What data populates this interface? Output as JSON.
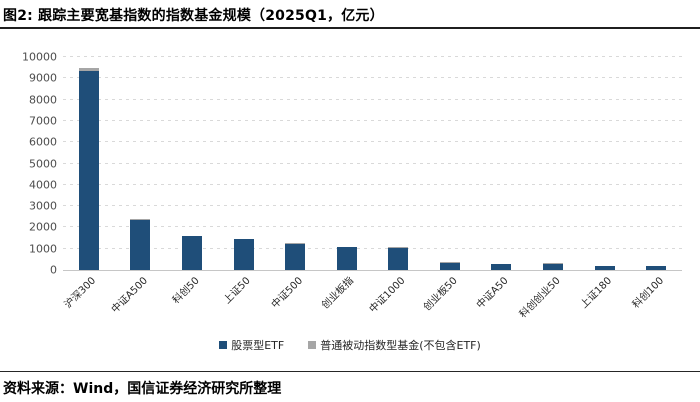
{
  "title": "图2: 跟踪主要宽基指数的指数基金规模（2025Q1，亿元）",
  "source": "资料来源：Wind，国信证券经济研究所整理",
  "colors": {
    "etf_bar": "#1F4E79",
    "non_etf_bar": "#A6A6A6",
    "gridline": "#D9D9D9",
    "axis_line": "#C6C6C6",
    "tick_text": "#4D4D4D",
    "rule_line": "#1F1F1F"
  },
  "chart_data": {
    "type": "bar",
    "stacked": true,
    "title": "跟踪主要宽基指数的指数基金规模（2025Q1，亿元）",
    "categories": [
      "沪深300",
      "中证A500",
      "科创50",
      "上证50",
      "中证500",
      "创业板指",
      "中证1000",
      "创业板50",
      "中证A50",
      "科创创业50",
      "上证180",
      "科创100"
    ],
    "series": [
      {
        "name": "股票型ETF",
        "color": "#1F4E79",
        "values": [
          9350,
          2350,
          1600,
          1450,
          1230,
          1080,
          1030,
          320,
          290,
          300,
          195,
          200
        ]
      },
      {
        "name": "普通被动指数型基金(不包含ETF)",
        "color": "#A6A6A6",
        "values": [
          150,
          30,
          20,
          30,
          30,
          20,
          30,
          60,
          10,
          10,
          15,
          10
        ]
      }
    ],
    "xlabel": "",
    "ylabel": "",
    "ylim": [
      0,
      10000
    ],
    "ytick_step": 1000,
    "grid": "dashed-horizontal",
    "legend_position": "bottom-center",
    "units": "亿元"
  }
}
